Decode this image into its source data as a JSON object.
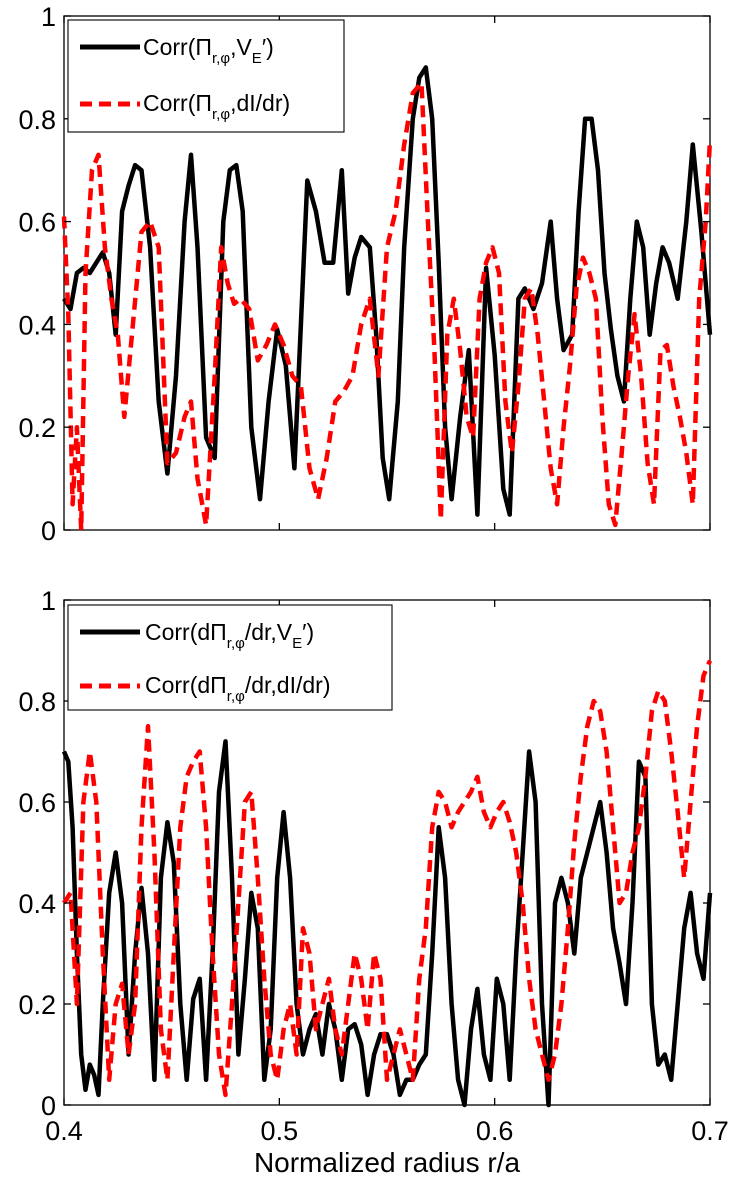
{
  "chart_data": [
    {
      "type": "line",
      "xlabel": "",
      "ylabel": "",
      "xlim": [
        0.4,
        0.7
      ],
      "ylim": [
        0,
        1
      ],
      "xticks": [
        0.4,
        0.5,
        0.6,
        0.7
      ],
      "xtick_labels_shown": false,
      "yticks": [
        0,
        0.2,
        0.4,
        0.6,
        0.8,
        1
      ],
      "ytick_labels": [
        "0",
        "0.2",
        "0.4",
        "0.6",
        "0.8",
        "1"
      ],
      "grid": false,
      "legend_position": "top-left",
      "series": [
        {
          "name": "Corr(Π_{r,φ},V_E′)",
          "legend": {
            "pre": "Corr(Π",
            "sub1": "r,φ",
            "mid": ",V",
            "sub2": "E",
            "post": "′)"
          },
          "color": "#000000",
          "style": "solid",
          "x": [
            0.4,
            0.403,
            0.406,
            0.409,
            0.412,
            0.415,
            0.418,
            0.421,
            0.424,
            0.427,
            0.43,
            0.433,
            0.436,
            0.44,
            0.444,
            0.448,
            0.452,
            0.456,
            0.459,
            0.462,
            0.466,
            0.47,
            0.474,
            0.477,
            0.48,
            0.483,
            0.487,
            0.491,
            0.495,
            0.499,
            0.503,
            0.507,
            0.51,
            0.513,
            0.517,
            0.521,
            0.525,
            0.529,
            0.532,
            0.535,
            0.538,
            0.542,
            0.545,
            0.548,
            0.551,
            0.555,
            0.558,
            0.562,
            0.565,
            0.568,
            0.571,
            0.574,
            0.577,
            0.58,
            0.584,
            0.588,
            0.592,
            0.596,
            0.6,
            0.604,
            0.607,
            0.611,
            0.614,
            0.618,
            0.622,
            0.626,
            0.629,
            0.632,
            0.636,
            0.639,
            0.642,
            0.645,
            0.648,
            0.651,
            0.654,
            0.657,
            0.66,
            0.663,
            0.666,
            0.669,
            0.672,
            0.675,
            0.678,
            0.681,
            0.685,
            0.689,
            0.692,
            0.696,
            0.7
          ],
          "y": [
            0.45,
            0.43,
            0.5,
            0.51,
            0.5,
            0.52,
            0.54,
            0.5,
            0.38,
            0.62,
            0.67,
            0.71,
            0.7,
            0.55,
            0.25,
            0.11,
            0.3,
            0.6,
            0.73,
            0.55,
            0.18,
            0.14,
            0.6,
            0.7,
            0.71,
            0.62,
            0.2,
            0.06,
            0.25,
            0.39,
            0.32,
            0.12,
            0.4,
            0.68,
            0.62,
            0.52,
            0.52,
            0.7,
            0.46,
            0.53,
            0.57,
            0.55,
            0.38,
            0.14,
            0.06,
            0.25,
            0.55,
            0.8,
            0.88,
            0.9,
            0.8,
            0.52,
            0.2,
            0.06,
            0.22,
            0.35,
            0.03,
            0.51,
            0.34,
            0.08,
            0.03,
            0.45,
            0.47,
            0.43,
            0.48,
            0.6,
            0.45,
            0.35,
            0.38,
            0.62,
            0.8,
            0.8,
            0.7,
            0.5,
            0.39,
            0.3,
            0.25,
            0.45,
            0.6,
            0.55,
            0.38,
            0.48,
            0.55,
            0.52,
            0.45,
            0.6,
            0.75,
            0.58,
            0.38
          ]
        },
        {
          "name": "Corr(Π_{r,φ},dI/dr)",
          "legend": {
            "pre": "Corr(Π",
            "sub1": "r,φ",
            "post": ",dI/dr)"
          },
          "color": "#ff0000",
          "style": "dashed",
          "x": [
            0.4,
            0.402,
            0.404,
            0.406,
            0.408,
            0.41,
            0.413,
            0.416,
            0.419,
            0.422,
            0.425,
            0.428,
            0.432,
            0.436,
            0.44,
            0.444,
            0.448,
            0.452,
            0.456,
            0.459,
            0.462,
            0.466,
            0.47,
            0.473,
            0.476,
            0.479,
            0.482,
            0.486,
            0.49,
            0.494,
            0.498,
            0.502,
            0.506,
            0.51,
            0.514,
            0.518,
            0.522,
            0.526,
            0.53,
            0.534,
            0.538,
            0.542,
            0.546,
            0.55,
            0.554,
            0.558,
            0.562,
            0.566,
            0.569,
            0.572,
            0.575,
            0.578,
            0.581,
            0.584,
            0.587,
            0.59,
            0.593,
            0.596,
            0.599,
            0.602,
            0.605,
            0.608,
            0.611,
            0.614,
            0.617,
            0.62,
            0.623,
            0.626,
            0.629,
            0.632,
            0.635,
            0.638,
            0.641,
            0.644,
            0.647,
            0.65,
            0.653,
            0.656,
            0.659,
            0.662,
            0.665,
            0.668,
            0.671,
            0.674,
            0.677,
            0.68,
            0.683,
            0.686,
            0.689,
            0.692,
            0.695,
            0.698,
            0.7
          ],
          "y": [
            0.61,
            0.42,
            0.05,
            0.2,
            0.0,
            0.5,
            0.7,
            0.73,
            0.55,
            0.45,
            0.38,
            0.22,
            0.4,
            0.58,
            0.6,
            0.55,
            0.13,
            0.15,
            0.22,
            0.25,
            0.1,
            0.01,
            0.3,
            0.55,
            0.48,
            0.44,
            0.45,
            0.43,
            0.33,
            0.36,
            0.4,
            0.36,
            0.3,
            0.28,
            0.12,
            0.06,
            0.14,
            0.25,
            0.27,
            0.3,
            0.4,
            0.45,
            0.3,
            0.55,
            0.62,
            0.75,
            0.85,
            0.87,
            0.6,
            0.35,
            0.02,
            0.38,
            0.45,
            0.35,
            0.22,
            0.18,
            0.45,
            0.52,
            0.55,
            0.5,
            0.25,
            0.15,
            0.28,
            0.45,
            0.47,
            0.38,
            0.25,
            0.12,
            0.05,
            0.2,
            0.32,
            0.47,
            0.53,
            0.5,
            0.45,
            0.22,
            0.05,
            0.01,
            0.15,
            0.3,
            0.42,
            0.3,
            0.13,
            0.05,
            0.35,
            0.36,
            0.28,
            0.22,
            0.15,
            0.05,
            0.45,
            0.6,
            0.76
          ]
        }
      ]
    },
    {
      "type": "line",
      "xlabel": "Normalized radius r/a",
      "ylabel": "",
      "xlim": [
        0.4,
        0.7
      ],
      "ylim": [
        0,
        1
      ],
      "xticks": [
        0.4,
        0.5,
        0.6,
        0.7
      ],
      "xtick_labels": [
        "0.4",
        "0.5",
        "0.6",
        "0.7"
      ],
      "yticks": [
        0,
        0.2,
        0.4,
        0.6,
        0.8,
        1
      ],
      "ytick_labels": [
        "0",
        "0.2",
        "0.4",
        "0.6",
        "0.8",
        "1"
      ],
      "grid": false,
      "legend_position": "top-left",
      "series": [
        {
          "name": "Corr(dΠ_{r,φ}/dr,V_E′)",
          "legend": {
            "pre": "Corr(dΠ",
            "sub1": "r,φ",
            "mid": "/dr,V",
            "sub2": "E",
            "post": "′)"
          },
          "color": "#000000",
          "style": "solid",
          "x": [
            0.4,
            0.402,
            0.404,
            0.406,
            0.408,
            0.41,
            0.412,
            0.414,
            0.416,
            0.418,
            0.421,
            0.424,
            0.427,
            0.43,
            0.433,
            0.436,
            0.439,
            0.442,
            0.445,
            0.448,
            0.451,
            0.454,
            0.457,
            0.46,
            0.463,
            0.466,
            0.469,
            0.472,
            0.475,
            0.478,
            0.481,
            0.484,
            0.487,
            0.49,
            0.493,
            0.496,
            0.499,
            0.502,
            0.505,
            0.508,
            0.511,
            0.514,
            0.517,
            0.52,
            0.523,
            0.526,
            0.529,
            0.532,
            0.535,
            0.538,
            0.541,
            0.544,
            0.547,
            0.55,
            0.553,
            0.556,
            0.559,
            0.562,
            0.565,
            0.568,
            0.571,
            0.574,
            0.577,
            0.58,
            0.583,
            0.586,
            0.589,
            0.592,
            0.595,
            0.598,
            0.601,
            0.604,
            0.607,
            0.61,
            0.613,
            0.616,
            0.619,
            0.622,
            0.625,
            0.628,
            0.631,
            0.634,
            0.637,
            0.64,
            0.643,
            0.646,
            0.649,
            0.652,
            0.655,
            0.658,
            0.661,
            0.664,
            0.667,
            0.67,
            0.673,
            0.676,
            0.679,
            0.682,
            0.685,
            0.688,
            0.691,
            0.694,
            0.697,
            0.7
          ],
          "y": [
            0.7,
            0.68,
            0.55,
            0.3,
            0.1,
            0.03,
            0.08,
            0.06,
            0.02,
            0.2,
            0.42,
            0.5,
            0.4,
            0.1,
            0.3,
            0.43,
            0.3,
            0.05,
            0.45,
            0.56,
            0.48,
            0.2,
            0.05,
            0.21,
            0.25,
            0.05,
            0.3,
            0.62,
            0.72,
            0.45,
            0.1,
            0.25,
            0.42,
            0.35,
            0.05,
            0.15,
            0.45,
            0.58,
            0.45,
            0.2,
            0.1,
            0.15,
            0.18,
            0.1,
            0.2,
            0.15,
            0.05,
            0.15,
            0.16,
            0.12,
            0.02,
            0.1,
            0.14,
            0.14,
            0.1,
            0.02,
            0.05,
            0.05,
            0.08,
            0.1,
            0.3,
            0.55,
            0.45,
            0.2,
            0.05,
            0.0,
            0.15,
            0.23,
            0.1,
            0.05,
            0.25,
            0.2,
            0.05,
            0.3,
            0.5,
            0.7,
            0.6,
            0.2,
            0.0,
            0.4,
            0.45,
            0.4,
            0.3,
            0.45,
            0.5,
            0.55,
            0.6,
            0.5,
            0.35,
            0.28,
            0.2,
            0.4,
            0.68,
            0.65,
            0.2,
            0.08,
            0.1,
            0.05,
            0.2,
            0.35,
            0.42,
            0.3,
            0.25,
            0.42
          ]
        },
        {
          "name": "Corr(dΠ_{r,φ}/dr,dI/dr)",
          "legend": {
            "pre": "Corr(dΠ",
            "sub1": "r,φ",
            "post": "/dr,dI/dr)"
          },
          "color": "#ff0000",
          "style": "dashed",
          "x": [
            0.4,
            0.403,
            0.406,
            0.409,
            0.412,
            0.415,
            0.418,
            0.421,
            0.424,
            0.427,
            0.43,
            0.433,
            0.436,
            0.439,
            0.442,
            0.445,
            0.448,
            0.451,
            0.454,
            0.457,
            0.46,
            0.463,
            0.466,
            0.469,
            0.472,
            0.475,
            0.478,
            0.481,
            0.484,
            0.487,
            0.49,
            0.493,
            0.496,
            0.499,
            0.502,
            0.505,
            0.508,
            0.511,
            0.514,
            0.517,
            0.52,
            0.523,
            0.526,
            0.529,
            0.532,
            0.535,
            0.538,
            0.541,
            0.544,
            0.547,
            0.55,
            0.553,
            0.556,
            0.559,
            0.562,
            0.565,
            0.568,
            0.571,
            0.574,
            0.577,
            0.58,
            0.583,
            0.586,
            0.589,
            0.592,
            0.595,
            0.598,
            0.601,
            0.604,
            0.607,
            0.61,
            0.613,
            0.616,
            0.619,
            0.622,
            0.625,
            0.628,
            0.631,
            0.634,
            0.637,
            0.64,
            0.643,
            0.646,
            0.649,
            0.652,
            0.655,
            0.658,
            0.661,
            0.664,
            0.667,
            0.67,
            0.673,
            0.676,
            0.679,
            0.682,
            0.685,
            0.688,
            0.691,
            0.694,
            0.697,
            0.7
          ],
          "y": [
            0.4,
            0.42,
            0.2,
            0.6,
            0.7,
            0.6,
            0.3,
            0.05,
            0.2,
            0.24,
            0.1,
            0.2,
            0.55,
            0.75,
            0.5,
            0.15,
            0.05,
            0.3,
            0.55,
            0.65,
            0.68,
            0.7,
            0.55,
            0.3,
            0.1,
            0.02,
            0.2,
            0.4,
            0.6,
            0.62,
            0.45,
            0.25,
            0.1,
            0.05,
            0.15,
            0.2,
            0.1,
            0.35,
            0.3,
            0.15,
            0.2,
            0.25,
            0.15,
            0.1,
            0.2,
            0.3,
            0.25,
            0.15,
            0.3,
            0.25,
            0.05,
            0.1,
            0.15,
            0.1,
            0.05,
            0.25,
            0.35,
            0.55,
            0.62,
            0.6,
            0.55,
            0.58,
            0.6,
            0.62,
            0.65,
            0.58,
            0.55,
            0.58,
            0.6,
            0.56,
            0.5,
            0.4,
            0.25,
            0.15,
            0.1,
            0.05,
            0.1,
            0.2,
            0.35,
            0.52,
            0.65,
            0.75,
            0.8,
            0.78,
            0.7,
            0.55,
            0.4,
            0.42,
            0.5,
            0.55,
            0.65,
            0.78,
            0.82,
            0.8,
            0.7,
            0.58,
            0.45,
            0.6,
            0.75,
            0.85,
            0.88
          ]
        }
      ]
    }
  ]
}
